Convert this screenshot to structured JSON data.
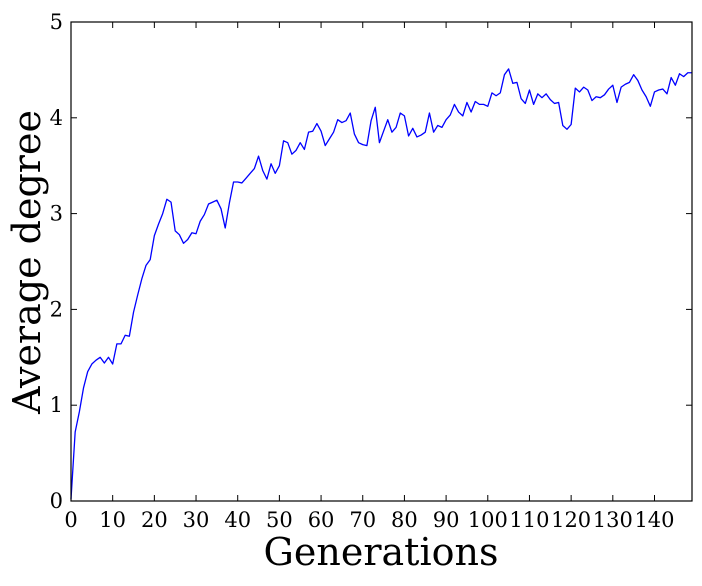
{
  "chart_data": {
    "type": "line",
    "title": "",
    "xlabel": "Generations",
    "ylabel": "Average degree",
    "xlim": [
      0,
      149
    ],
    "ylim": [
      0,
      5
    ],
    "x_ticks": [
      0,
      10,
      20,
      30,
      40,
      50,
      60,
      70,
      80,
      90,
      100,
      110,
      120,
      130,
      140
    ],
    "x_tick_labels": [
      "0",
      "10",
      "20",
      "30",
      "40",
      "50",
      "60",
      "70",
      "80",
      "90",
      "100",
      "110",
      "120",
      "130",
      "140"
    ],
    "y_ticks": [
      0,
      1,
      2,
      3,
      4,
      5
    ],
    "y_tick_labels": [
      "0",
      "1",
      "2",
      "3",
      "4",
      "5"
    ],
    "grid": false,
    "legend": "none",
    "series": [
      {
        "color": "#0000ff",
        "x": [
          0,
          1,
          2,
          3,
          4,
          5,
          6,
          7,
          8,
          9,
          10,
          11,
          12,
          13,
          14,
          15,
          16,
          17,
          18,
          19,
          20,
          21,
          22,
          23,
          24,
          25,
          26,
          27,
          28,
          29,
          30,
          31,
          32,
          33,
          34,
          35,
          36,
          37,
          38,
          39,
          40,
          41,
          42,
          43,
          44,
          45,
          46,
          47,
          48,
          49,
          50,
          51,
          52,
          53,
          54,
          55,
          56,
          57,
          58,
          59,
          60,
          61,
          62,
          63,
          64,
          65,
          66,
          67,
          68,
          69,
          70,
          71,
          72,
          73,
          74,
          75,
          76,
          77,
          78,
          79,
          80,
          81,
          82,
          83,
          84,
          85,
          86,
          87,
          88,
          89,
          90,
          91,
          92,
          93,
          94,
          95,
          96,
          97,
          98,
          99,
          100,
          101,
          102,
          103,
          104,
          105,
          106,
          107,
          108,
          109,
          110,
          111,
          112,
          113,
          114,
          115,
          116,
          117,
          118,
          119,
          120,
          121,
          122,
          123,
          124,
          125,
          126,
          127,
          128,
          129,
          130,
          131,
          132,
          133,
          134,
          135,
          136,
          137,
          138,
          139,
          140,
          141,
          142,
          143,
          144,
          145,
          146,
          147,
          148,
          149
        ],
        "values": [
          0.02,
          0.72,
          0.93,
          1.18,
          1.35,
          1.43,
          1.47,
          1.5,
          1.44,
          1.5,
          1.43,
          1.64,
          1.64,
          1.73,
          1.72,
          1.97,
          2.15,
          2.32,
          2.46,
          2.52,
          2.77,
          2.89,
          3.0,
          3.15,
          3.12,
          2.82,
          2.78,
          2.69,
          2.73,
          2.8,
          2.79,
          2.92,
          2.99,
          3.1,
          3.12,
          3.14,
          3.05,
          2.85,
          3.11,
          3.33,
          3.33,
          3.32,
          3.37,
          3.42,
          3.47,
          3.6,
          3.45,
          3.36,
          3.52,
          3.42,
          3.5,
          3.76,
          3.74,
          3.62,
          3.66,
          3.74,
          3.67,
          3.85,
          3.86,
          3.94,
          3.86,
          3.71,
          3.78,
          3.85,
          3.98,
          3.95,
          3.97,
          4.05,
          3.83,
          3.74,
          3.72,
          3.71,
          3.97,
          4.11,
          3.74,
          3.86,
          3.98,
          3.85,
          3.9,
          4.05,
          4.02,
          3.81,
          3.89,
          3.8,
          3.82,
          3.85,
          4.05,
          3.85,
          3.92,
          3.9,
          3.98,
          4.03,
          4.14,
          4.06,
          4.02,
          4.16,
          4.06,
          4.17,
          4.14,
          4.14,
          4.12,
          4.26,
          4.23,
          4.26,
          4.45,
          4.51,
          4.36,
          4.37,
          4.2,
          4.15,
          4.29,
          4.14,
          4.25,
          4.21,
          4.25,
          4.19,
          4.15,
          4.16,
          3.92,
          3.88,
          3.93,
          4.31,
          4.27,
          4.32,
          4.29,
          4.18,
          4.22,
          4.21,
          4.24,
          4.3,
          4.34,
          4.16,
          4.32,
          4.35,
          4.37,
          4.45,
          4.39,
          4.29,
          4.22,
          4.12,
          4.27,
          4.29,
          4.3,
          4.25,
          4.42,
          4.34,
          4.46,
          4.43,
          4.47,
          4.47
        ]
      }
    ]
  }
}
